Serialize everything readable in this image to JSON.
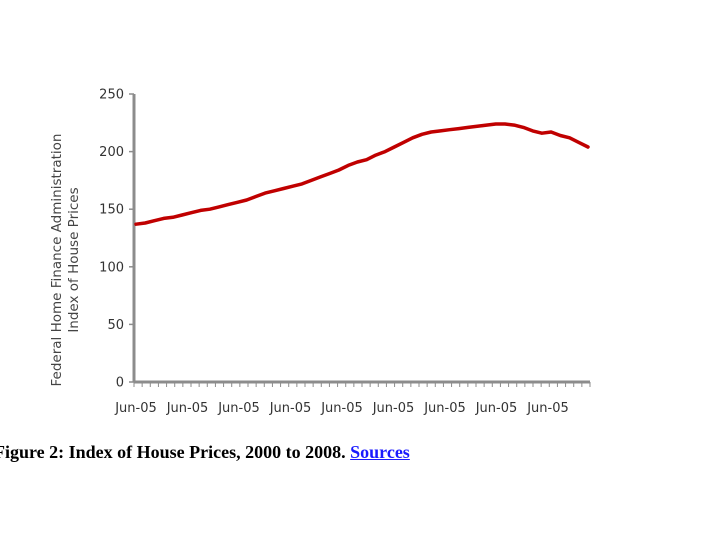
{
  "chart_data": {
    "type": "line",
    "title": "",
    "ylabel": [
      "Federal Home Finance Administration",
      "Index of House Prices"
    ],
    "xlabel": "",
    "ylim": [
      0,
      250
    ],
    "yticks": [
      0,
      50,
      100,
      150,
      200,
      250
    ],
    "xtick_labels": [
      "Jun-05",
      "Jun-05",
      "Jun-05",
      "Jun-05",
      "Jun-05",
      "Jun-05",
      "Jun-05",
      "Jun-05",
      "Jun-05"
    ],
    "grid": false,
    "line_color": "#c00000",
    "series": [
      {
        "values": [
          137,
          138,
          140,
          142,
          143,
          145,
          147,
          149,
          150,
          152,
          154,
          156,
          158,
          161,
          164,
          166,
          168,
          170,
          172,
          175,
          178,
          181,
          184,
          188,
          191,
          193,
          197,
          200,
          204,
          208,
          212,
          215,
          217,
          218,
          219,
          220,
          221,
          222,
          223,
          224,
          224,
          223,
          221,
          218,
          216,
          217,
          214,
          212,
          208,
          204
        ]
      }
    ]
  },
  "caption": {
    "text": "Figure 2: Index of House Prices, 2000 to 2008.",
    "link": "Sources"
  }
}
